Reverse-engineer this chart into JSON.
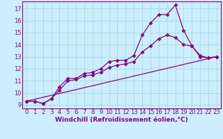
{
  "xlabel": "Windchill (Refroidissement éolien,°C)",
  "bg_color": "#cceeff",
  "line_color": "#880088",
  "grid_color": "#aadddd",
  "xlim": [
    -0.5,
    23.5
  ],
  "ylim": [
    8.7,
    17.6
  ],
  "yticks": [
    9,
    10,
    11,
    12,
    13,
    14,
    15,
    16,
    17
  ],
  "xticks": [
    0,
    1,
    2,
    3,
    4,
    5,
    6,
    7,
    8,
    9,
    10,
    11,
    12,
    13,
    14,
    15,
    16,
    17,
    18,
    19,
    20,
    21,
    22,
    23
  ],
  "line1_x": [
    0,
    1,
    2,
    3,
    4,
    5,
    6,
    7,
    8,
    9,
    10,
    11,
    12,
    13,
    14,
    15,
    16,
    17,
    18,
    19,
    20,
    21,
    22,
    23
  ],
  "line1_y": [
    9.3,
    9.3,
    9.1,
    9.5,
    10.5,
    11.2,
    11.2,
    11.6,
    11.7,
    12.0,
    12.6,
    12.7,
    12.7,
    13.1,
    14.8,
    15.8,
    16.5,
    16.5,
    17.3,
    15.2,
    13.9,
    13.1,
    12.9,
    13.0
  ],
  "line2_x": [
    0,
    1,
    2,
    3,
    4,
    5,
    6,
    7,
    8,
    9,
    10,
    11,
    12,
    13,
    14,
    15,
    16,
    17,
    18,
    19,
    20,
    21,
    22,
    23
  ],
  "line2_y": [
    9.3,
    9.3,
    9.1,
    9.5,
    10.2,
    11.0,
    11.1,
    11.4,
    11.5,
    11.7,
    12.1,
    12.3,
    12.4,
    12.6,
    13.4,
    13.9,
    14.5,
    14.8,
    14.6,
    14.0,
    13.9,
    13.0,
    12.9,
    13.0
  ],
  "line3_x": [
    0,
    23
  ],
  "line3_y": [
    9.3,
    13.0
  ],
  "marker": "D",
  "markersize": 2.5,
  "linewidth": 0.9,
  "xlabel_fontsize": 6.5,
  "tick_fontsize": 6.0,
  "tick_color": "#880088"
}
